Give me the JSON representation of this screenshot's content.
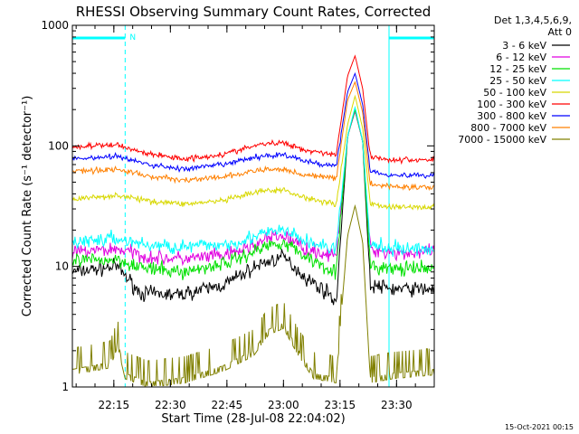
{
  "chart_data": {
    "type": "line",
    "title": "RHESSI Observing Summary Count Rates, Corrected",
    "xlabel": "Start Time (28-Jul-08 22:04:02)",
    "ylabel": "Corrected Count Rate (s⁻¹ detector⁻¹)",
    "y_scale": "log",
    "ylim": [
      1,
      1000
    ],
    "xlim_minutes": [
      0,
      96
    ],
    "x_ticks": [
      {
        "t": 11,
        "label": "22:15"
      },
      {
        "t": 26,
        "label": "22:30"
      },
      {
        "t": 41,
        "label": "22:45"
      },
      {
        "t": 56,
        "label": "23:00"
      },
      {
        "t": 71,
        "label": "23:15"
      },
      {
        "t": 86,
        "label": "23:30"
      }
    ],
    "y_ticks": [
      {
        "v": 1,
        "label": "1"
      },
      {
        "v": 10,
        "label": "10"
      },
      {
        "v": 100,
        "label": "100"
      },
      {
        "v": 1000,
        "label": "1000"
      }
    ],
    "legend": {
      "header": [
        "Det 1,3,4,5,6,9,",
        "Att 0"
      ],
      "placement": "outside-right"
    },
    "night_intervals": [
      [
        0,
        14
      ],
      [
        84,
        96
      ]
    ],
    "night_label": "N",
    "annotations": {
      "timestamp": "15-Oct-2021 00:15"
    },
    "series": [
      {
        "name": "3 - 6 keV",
        "color": "#000000",
        "points": [
          [
            0,
            9
          ],
          [
            12,
            10
          ],
          [
            18,
            6
          ],
          [
            28,
            5.8
          ],
          [
            40,
            7
          ],
          [
            50,
            10.5
          ],
          [
            56,
            12
          ],
          [
            62,
            8
          ],
          [
            68,
            6
          ],
          [
            70,
            5
          ],
          [
            73,
            120
          ],
          [
            75,
            195
          ],
          [
            77,
            110
          ],
          [
            79,
            7
          ],
          [
            85,
            6.5
          ],
          [
            96,
            6.5
          ]
        ]
      },
      {
        "name": "6 - 12 keV",
        "color": "#e000e0",
        "points": [
          [
            0,
            13
          ],
          [
            12,
            14
          ],
          [
            20,
            12
          ],
          [
            30,
            11.5
          ],
          [
            42,
            12.5
          ],
          [
            52,
            17
          ],
          [
            56,
            18
          ],
          [
            62,
            14
          ],
          [
            70,
            12
          ],
          [
            73,
            120
          ],
          [
            75,
            195
          ],
          [
            77,
            110
          ],
          [
            79,
            14
          ],
          [
            85,
            13
          ],
          [
            96,
            13
          ]
        ]
      },
      {
        "name": "12 - 25 keV",
        "color": "#00e000",
        "points": [
          [
            0,
            11
          ],
          [
            12,
            11.5
          ],
          [
            20,
            9.5
          ],
          [
            30,
            9
          ],
          [
            42,
            11
          ],
          [
            52,
            15
          ],
          [
            56,
            16
          ],
          [
            62,
            12
          ],
          [
            70,
            9
          ],
          [
            73,
            120
          ],
          [
            75,
            200
          ],
          [
            77,
            110
          ],
          [
            79,
            10
          ],
          [
            85,
            9.5
          ],
          [
            96,
            9.5
          ]
        ]
      },
      {
        "name": "25 - 50 keV",
        "color": "#00ffff",
        "points": [
          [
            0,
            16
          ],
          [
            12,
            17
          ],
          [
            20,
            15
          ],
          [
            30,
            14.5
          ],
          [
            42,
            15.5
          ],
          [
            52,
            19
          ],
          [
            56,
            20
          ],
          [
            62,
            16
          ],
          [
            70,
            14
          ],
          [
            73,
            120
          ],
          [
            75,
            210
          ],
          [
            77,
            110
          ],
          [
            79,
            15
          ],
          [
            85,
            14
          ],
          [
            96,
            14
          ]
        ]
      },
      {
        "name": "50 - 100 keV",
        "color": "#d8d800",
        "points": [
          [
            0,
            36
          ],
          [
            12,
            39
          ],
          [
            20,
            35
          ],
          [
            30,
            33
          ],
          [
            40,
            35
          ],
          [
            50,
            42
          ],
          [
            56,
            43
          ],
          [
            62,
            37
          ],
          [
            70,
            33
          ],
          [
            73,
            150
          ],
          [
            75,
            260
          ],
          [
            77,
            140
          ],
          [
            79,
            33
          ],
          [
            85,
            31
          ],
          [
            96,
            31
          ]
        ]
      },
      {
        "name": "100 - 300 keV",
        "color": "#ff0000",
        "points": [
          [
            0,
            98
          ],
          [
            12,
            102
          ],
          [
            20,
            86
          ],
          [
            30,
            78
          ],
          [
            40,
            85
          ],
          [
            50,
            103
          ],
          [
            56,
            106
          ],
          [
            62,
            92
          ],
          [
            70,
            85
          ],
          [
            73,
            380
          ],
          [
            75,
            560
          ],
          [
            77,
            300
          ],
          [
            79,
            82
          ],
          [
            85,
            76
          ],
          [
            96,
            77
          ]
        ]
      },
      {
        "name": "300 - 800 keV",
        "color": "#0000ff",
        "points": [
          [
            0,
            78
          ],
          [
            12,
            82
          ],
          [
            20,
            70
          ],
          [
            30,
            64
          ],
          [
            40,
            70
          ],
          [
            50,
            82
          ],
          [
            56,
            85
          ],
          [
            62,
            74
          ],
          [
            70,
            68
          ],
          [
            73,
            280
          ],
          [
            75,
            400
          ],
          [
            77,
            220
          ],
          [
            79,
            62
          ],
          [
            85,
            57
          ],
          [
            96,
            57
          ]
        ]
      },
      {
        "name": "800 - 7000 keV",
        "color": "#ff8000",
        "points": [
          [
            0,
            62
          ],
          [
            12,
            64
          ],
          [
            20,
            56
          ],
          [
            30,
            52
          ],
          [
            40,
            55
          ],
          [
            50,
            63
          ],
          [
            56,
            64
          ],
          [
            62,
            57
          ],
          [
            70,
            54
          ],
          [
            73,
            240
          ],
          [
            75,
            340
          ],
          [
            77,
            190
          ],
          [
            79,
            48
          ],
          [
            85,
            46
          ],
          [
            96,
            45
          ]
        ]
      },
      {
        "name": "7000 - 15000 keV",
        "color": "#808000",
        "points": [
          [
            0,
            1.4
          ],
          [
            10,
            1.6
          ],
          [
            12,
            2.4
          ],
          [
            14,
            1.3
          ],
          [
            20,
            1.1
          ],
          [
            30,
            1.2
          ],
          [
            40,
            1.5
          ],
          [
            48,
            2
          ],
          [
            52,
            3
          ],
          [
            56,
            3.4
          ],
          [
            60,
            2
          ],
          [
            64,
            1.3
          ],
          [
            70,
            1.2
          ],
          [
            73,
            18
          ],
          [
            75,
            32
          ],
          [
            77,
            16
          ],
          [
            79,
            1.2
          ],
          [
            85,
            1.3
          ],
          [
            96,
            1.4
          ]
        ]
      }
    ]
  }
}
